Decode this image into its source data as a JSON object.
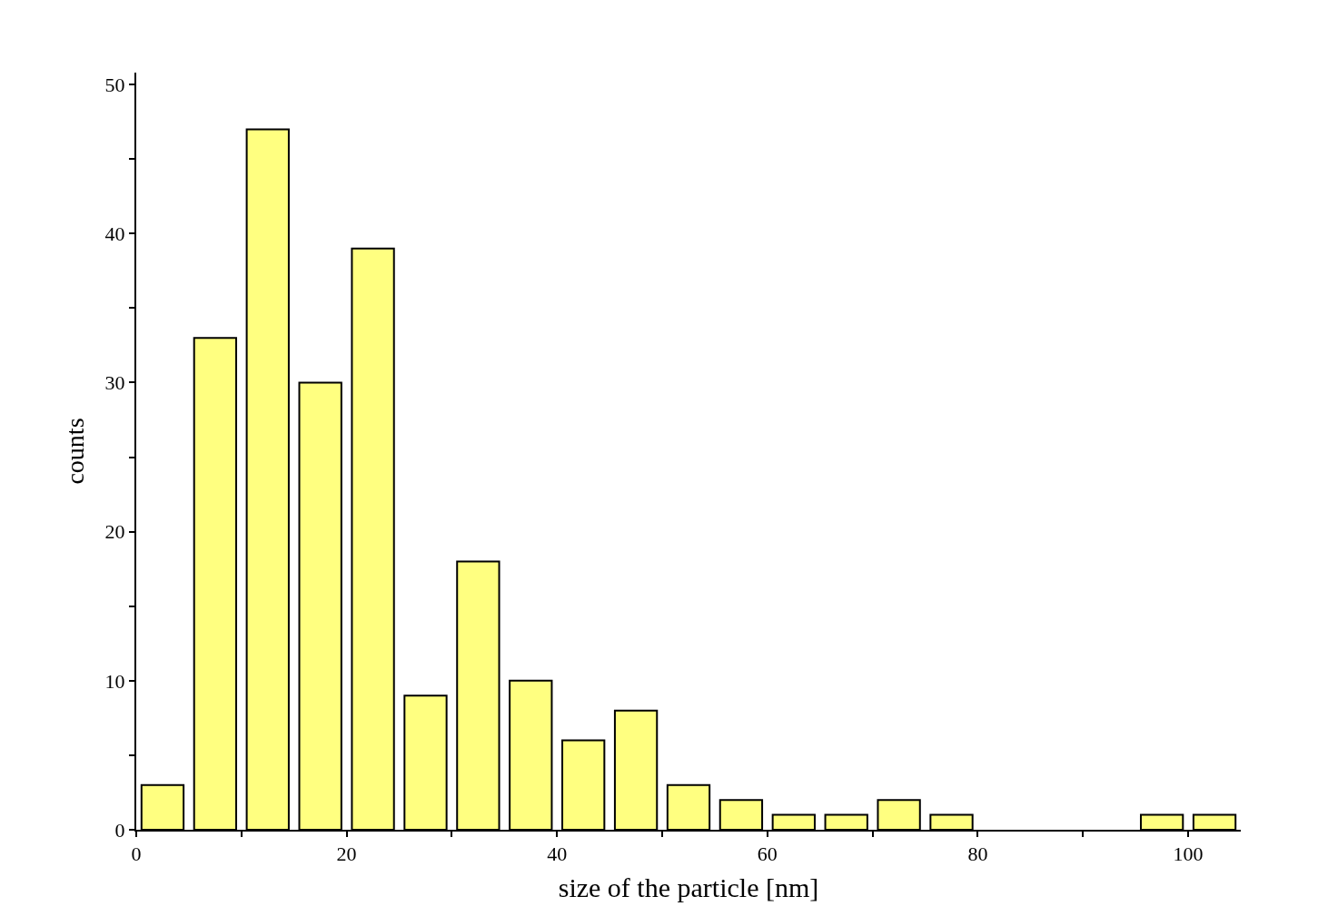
{
  "chart_data": {
    "type": "histogram",
    "xlabel": "size of the particle [nm]",
    "ylabel": "counts",
    "bins": [
      0,
      5,
      10,
      15,
      20,
      25,
      30,
      35,
      40,
      45,
      50,
      55,
      60,
      65,
      70,
      75,
      80,
      85,
      90,
      95,
      100,
      105
    ],
    "values": [
      3,
      33,
      47,
      30,
      39,
      9,
      18,
      10,
      6,
      8,
      3,
      2,
      1,
      1,
      2,
      1,
      0,
      0,
      0,
      1,
      1
    ],
    "color": "#ffff80",
    "xlim": [
      0,
      105
    ],
    "yticks": [
      0,
      {
        "value": 5,
        "label": null
      },
      10,
      {
        "value": 15,
        "label": null
      },
      20,
      {
        "value": 25,
        "label": null
      },
      30,
      {
        "value": 35,
        "label": null
      },
      40,
      {
        "value": 45,
        "label": null
      },
      50
    ],
    "xticks": [
      0,
      {
        "value": 10,
        "label": null
      },
      20,
      {
        "value": 30,
        "label": null
      },
      40,
      {
        "value": 50,
        "label": null
      },
      60,
      {
        "value": 70,
        "label": null
      },
      80,
      {
        "value": 90,
        "label": null
      },
      100
    ],
    "ylim": [
      0,
      50.8
    ]
  }
}
